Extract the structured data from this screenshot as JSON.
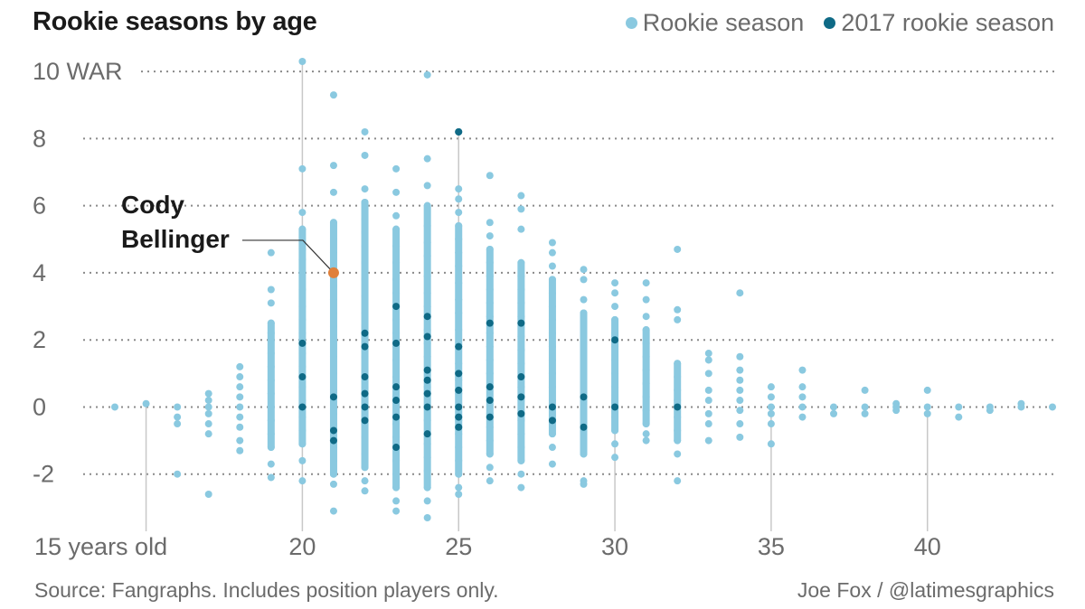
{
  "title": "Rookie seasons by age",
  "legend": [
    {
      "label": "Rookie season",
      "color": "#8ac9e0"
    },
    {
      "label": "2017 rookie season",
      "color": "#0f6a86"
    }
  ],
  "footer": {
    "source": "Source: Fangraphs. Includes position players only.",
    "credit": "Joe Fox / @latimesgraphics"
  },
  "chart_data": {
    "type": "scatter",
    "title": "Rookie seasons by age",
    "xlim": [
      14,
      44
    ],
    "ylim": [
      -3.3,
      10.3
    ],
    "x_ticks": [
      {
        "value": 15,
        "label": "15 years old"
      },
      {
        "value": 20,
        "label": "20"
      },
      {
        "value": 25,
        "label": "25"
      },
      {
        "value": 30,
        "label": "30"
      },
      {
        "value": 35,
        "label": "35"
      },
      {
        "value": 40,
        "label": "40"
      }
    ],
    "y_ticks": [
      {
        "value": 10,
        "label": "10 WAR"
      },
      {
        "value": 8,
        "label": "8"
      },
      {
        "value": 6,
        "label": "6"
      },
      {
        "value": 4,
        "label": "4"
      },
      {
        "value": 2,
        "label": "2"
      },
      {
        "value": 0,
        "label": "0"
      },
      {
        "value": -2,
        "label": "-2"
      }
    ],
    "grid": "horizontal-dotted",
    "colors": {
      "rookie": "#8ac9e0",
      "rookie_2017": "#0f6a86",
      "highlight": "#e0803a"
    },
    "series": [
      {
        "name": "Rookie season",
        "points_by_age": [
          {
            "age": 14,
            "war": [
              0
            ]
          },
          {
            "age": 15,
            "war": [
              0.1
            ]
          },
          {
            "age": 16,
            "war": [
              0,
              -0.3,
              -0.5,
              -2.0
            ]
          },
          {
            "age": 17,
            "war": [
              0.4,
              0.2,
              0,
              -0.2,
              -0.5,
              -0.8,
              -2.6
            ]
          },
          {
            "age": 18,
            "war": [
              1.2,
              0.9,
              0.6,
              0.3,
              0,
              -0.3,
              -0.6,
              -1.0,
              -1.3
            ]
          },
          {
            "age": 19,
            "war": [
              4.6,
              3.5,
              3.1,
              2.5,
              2.2,
              1.6,
              1.2,
              0.8,
              0.4,
              0,
              -0.4,
              -0.8,
              -1.2,
              -1.7,
              -2.1
            ]
          },
          {
            "age": 20,
            "war": [
              10.3,
              7.1,
              5.8,
              5.3,
              4.7,
              4.4,
              4.0,
              3.5,
              3.0,
              2.6,
              2.2,
              1.6,
              1.2,
              0.6,
              0.2,
              -0.3,
              -0.7,
              -1.1,
              -1.6,
              -2.2
            ]
          },
          {
            "age": 21,
            "war": [
              9.3,
              7.2,
              6.4,
              5.5,
              5.0,
              4.6,
              3.6,
              3.2,
              2.8,
              2.4,
              1.5,
              1.0,
              0.5,
              -0.2,
              -0.5,
              -1.2,
              -1.6,
              -2.0,
              -2.3,
              -3.1
            ]
          },
          {
            "age": 22,
            "war": [
              8.2,
              7.5,
              6.5,
              6.1,
              5.6,
              5.2,
              4.8,
              4.3,
              3.8,
              3.3,
              2.8,
              2.4,
              1.5,
              1.1,
              0.6,
              0.2,
              -0.5,
              -0.9,
              -1.4,
              -1.8,
              -2.2,
              -2.5
            ]
          },
          {
            "age": 23,
            "war": [
              7.1,
              6.4,
              5.7,
              5.3,
              4.8,
              4.3,
              3.8,
              3.4,
              2.6,
              2.2,
              1.8,
              1.4,
              0.9,
              0.3,
              -0.5,
              -0.9,
              -1.6,
              -2.0,
              -2.4,
              -2.8,
              -3.1
            ]
          },
          {
            "age": 24,
            "war": [
              9.9,
              7.4,
              6.6,
              6.0,
              5.4,
              4.9,
              4.5,
              3.9,
              3.4,
              3.0,
              2.3,
              1.9,
              1.5,
              0.6,
              -0.4,
              -1.1,
              -1.5,
              -1.9,
              -2.4,
              -2.8,
              -3.3
            ]
          },
          {
            "age": 25,
            "war": [
              6.5,
              6.2,
              5.8,
              5.4,
              5.0,
              4.6,
              4.2,
              3.7,
              3.2,
              2.8,
              2.3,
              1.3,
              0.8,
              0.4,
              -0.4,
              -0.8,
              -1.2,
              -1.6,
              -2.0,
              -2.4,
              -2.6
            ]
          },
          {
            "age": 26,
            "war": [
              6.9,
              5.5,
              5.1,
              4.7,
              4.3,
              3.9,
              3.5,
              3.1,
              2.7,
              2.2,
              1.8,
              1.4,
              1.0,
              -0.2,
              -0.6,
              -1.0,
              -1.4,
              -1.8,
              -2.2
            ]
          },
          {
            "age": 27,
            "war": [
              6.3,
              5.9,
              5.3,
              4.3,
              3.9,
              3.5,
              3.1,
              2.7,
              2.1,
              1.7,
              1.3,
              0.6,
              0.2,
              -0.4,
              -0.8,
              -1.2,
              -1.6,
              -2.0,
              -2.4
            ]
          },
          {
            "age": 28,
            "war": [
              4.9,
              4.6,
              4.2,
              3.8,
              3.4,
              3.0,
              2.6,
              2.2,
              1.8,
              1.4,
              1.0,
              0.6,
              0.2,
              -0.4,
              -0.8,
              -1.2,
              -1.7
            ]
          },
          {
            "age": 29,
            "war": [
              4.1,
              3.8,
              3.2,
              2.8,
              2.4,
              2.0,
              1.6,
              1.2,
              0.8,
              0.4,
              0,
              -0.4,
              -1.0,
              -1.4,
              -2.2,
              -2.3
            ]
          },
          {
            "age": 30,
            "war": [
              3.7,
              3.4,
              3.0,
              2.6,
              2.2,
              1.8,
              1.4,
              1.0,
              0.6,
              0.2,
              -0.3,
              -0.7,
              -1.1,
              -1.5
            ]
          },
          {
            "age": 31,
            "war": [
              3.7,
              3.2,
              2.7,
              2.3,
              1.9,
              1.5,
              1.1,
              0.7,
              0.3,
              -0.1,
              -0.5,
              -0.8,
              -1.0
            ]
          },
          {
            "age": 32,
            "war": [
              4.7,
              2.9,
              2.6,
              1.3,
              0.9,
              0.5,
              0.2,
              -0.3,
              -0.7,
              -1.0,
              -1.4,
              -2.2
            ]
          },
          {
            "age": 33,
            "war": [
              1.6,
              1.4,
              1.0,
              0.5,
              0.2,
              -0.2,
              -0.5,
              -1.0
            ]
          },
          {
            "age": 34,
            "war": [
              3.4,
              1.5,
              1.1,
              0.8,
              0.5,
              0.2,
              -0.1,
              -0.5,
              -0.9
            ]
          },
          {
            "age": 35,
            "war": [
              0.6,
              0.3,
              0,
              -0.2,
              -0.5,
              -1.1
            ]
          },
          {
            "age": 36,
            "war": [
              1.1,
              0.6,
              0.3,
              0,
              -0.3
            ]
          },
          {
            "age": 37,
            "war": [
              0,
              -0.2
            ]
          },
          {
            "age": 38,
            "war": [
              0.5,
              0,
              -0.2
            ]
          },
          {
            "age": 39,
            "war": [
              0.1,
              0,
              -0.1
            ]
          },
          {
            "age": 40,
            "war": [
              0.5,
              0,
              -0.2
            ]
          },
          {
            "age": 41,
            "war": [
              0,
              -0.3
            ]
          },
          {
            "age": 42,
            "war": [
              0,
              -0.1
            ]
          },
          {
            "age": 43,
            "war": [
              0.1,
              0
            ]
          },
          {
            "age": 44,
            "war": [
              0
            ]
          }
        ]
      },
      {
        "name": "2017 rookie season",
        "points_by_age": [
          {
            "age": 20,
            "war": [
              1.9,
              0.9,
              0
            ]
          },
          {
            "age": 21,
            "war": [
              0.3,
              -0.7,
              -1.0
            ]
          },
          {
            "age": 22,
            "war": [
              2.2,
              1.8,
              0.9,
              0.4,
              0,
              -0.4
            ]
          },
          {
            "age": 23,
            "war": [
              3.0,
              1.9,
              0.6,
              0.2,
              -0.3,
              -1.2
            ]
          },
          {
            "age": 24,
            "war": [
              2.7,
              2.1,
              1.1,
              0.8,
              0.4,
              0,
              -0.8
            ]
          },
          {
            "age": 25,
            "war": [
              8.2,
              1.8,
              1.0,
              0.5,
              0,
              -0.3,
              -0.6
            ]
          },
          {
            "age": 26,
            "war": [
              2.5,
              0.6,
              0.2,
              -0.3
            ]
          },
          {
            "age": 27,
            "war": [
              2.5,
              0.9,
              0.3,
              -0.2
            ]
          },
          {
            "age": 28,
            "war": [
              0,
              -0.4
            ]
          },
          {
            "age": 29,
            "war": [
              0.3,
              -0.6
            ]
          },
          {
            "age": 30,
            "war": [
              2.0,
              0
            ]
          },
          {
            "age": 32,
            "war": [
              0
            ]
          }
        ]
      }
    ],
    "highlight": {
      "age": 21,
      "war": 4.0,
      "label_line1": "Cody",
      "label_line2": "Bellinger"
    }
  }
}
